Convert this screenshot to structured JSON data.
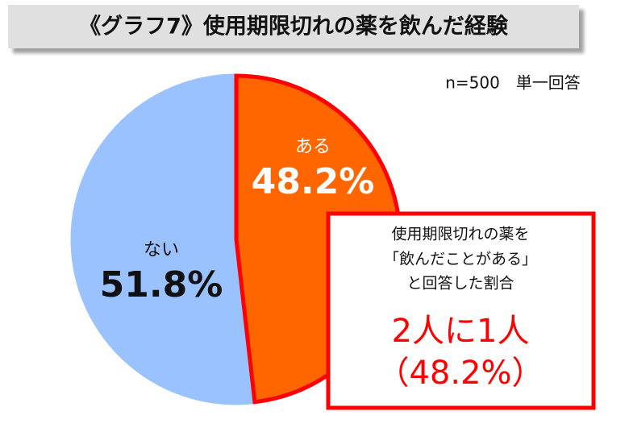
{
  "chart_data": {
    "type": "pie",
    "title": "《グラフ7》使用期限切れの薬を飲んだ経験",
    "subtitle": "n=500　単一回答",
    "categories": [
      "ある",
      "ない"
    ],
    "values": [
      48.2,
      51.8
    ],
    "value_labels": [
      "48.2%",
      "51.8%"
    ],
    "colors": [
      "#ff6600",
      "#99c2ff"
    ],
    "edge_colors": [
      "#ff0000",
      "#99c2ff"
    ],
    "annotations": [
      "使用期限切れの薬を",
      "「飲んだことがある」",
      "と回答した割合",
      "2人に1人",
      "（48.2%）"
    ]
  }
}
